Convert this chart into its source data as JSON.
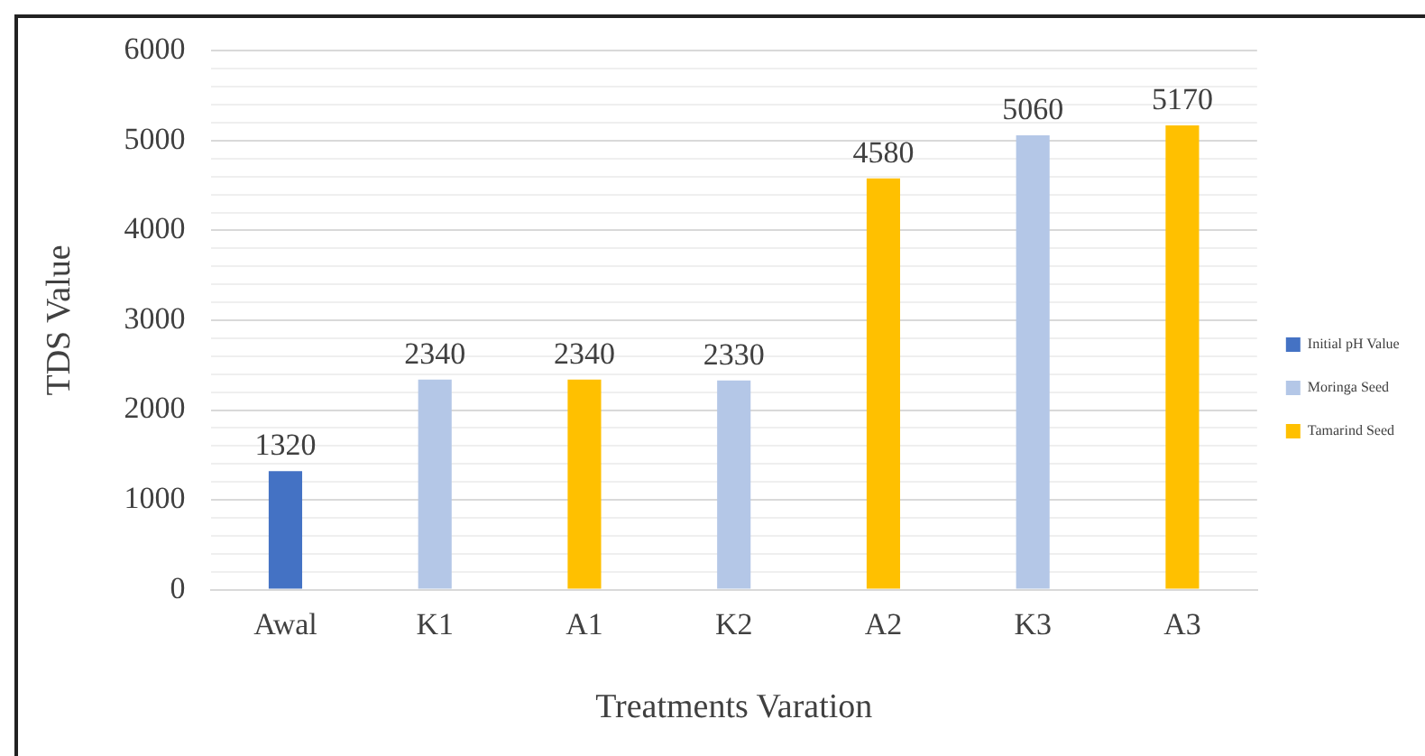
{
  "chart_data": {
    "type": "bar",
    "xlabel": "Treatments Varation",
    "ylabel": "TDS Value",
    "categories": [
      "Awal",
      "K1",
      "A1",
      "K2",
      "A2",
      "K3",
      "A3"
    ],
    "series": [
      {
        "name": "Initial pH Value",
        "color": "#4472c4",
        "values": [
          1320,
          null,
          null,
          null,
          null,
          null,
          null
        ]
      },
      {
        "name": "Moringa Seed",
        "color": "#b4c7e7",
        "values": [
          null,
          2340,
          null,
          2330,
          null,
          5060,
          null
        ]
      },
      {
        "name": "Tamarind Seed",
        "color": "#ffc000",
        "values": [
          null,
          null,
          2340,
          null,
          4580,
          null,
          5170
        ]
      }
    ],
    "ylim": [
      0,
      6000
    ],
    "yticks": [
      0,
      {
        "value": 200,
        "label": null
      },
      {
        "value": 400,
        "label": null
      },
      {
        "value": 600,
        "label": null
      },
      {
        "value": 800,
        "label": null
      },
      1000,
      {
        "value": 1200,
        "label": null
      },
      {
        "value": 1400,
        "label": null
      },
      {
        "value": 1600,
        "label": null
      },
      {
        "value": 1800,
        "label": null
      },
      2000,
      {
        "value": 2200,
        "label": null
      },
      {
        "value": 2400,
        "label": null
      },
      {
        "value": 2600,
        "label": null
      },
      {
        "value": 2800,
        "label": null
      },
      3000,
      {
        "value": 3200,
        "label": null
      },
      {
        "value": 3400,
        "label": null
      },
      {
        "value": 3600,
        "label": null
      },
      {
        "value": 3800,
        "label": null
      },
      4000,
      {
        "value": 4200,
        "label": null
      },
      {
        "value": 4400,
        "label": null
      },
      {
        "value": 4600,
        "label": null
      },
      {
        "value": 4800,
        "label": null
      },
      5000,
      {
        "value": 5200,
        "label": null
      },
      {
        "value": 5400,
        "label": null
      },
      {
        "value": 5600,
        "label": null
      },
      {
        "value": 5800,
        "label": null
      },
      6000
    ],
    "grid": "y",
    "legend": "right",
    "data_labels": true
  }
}
